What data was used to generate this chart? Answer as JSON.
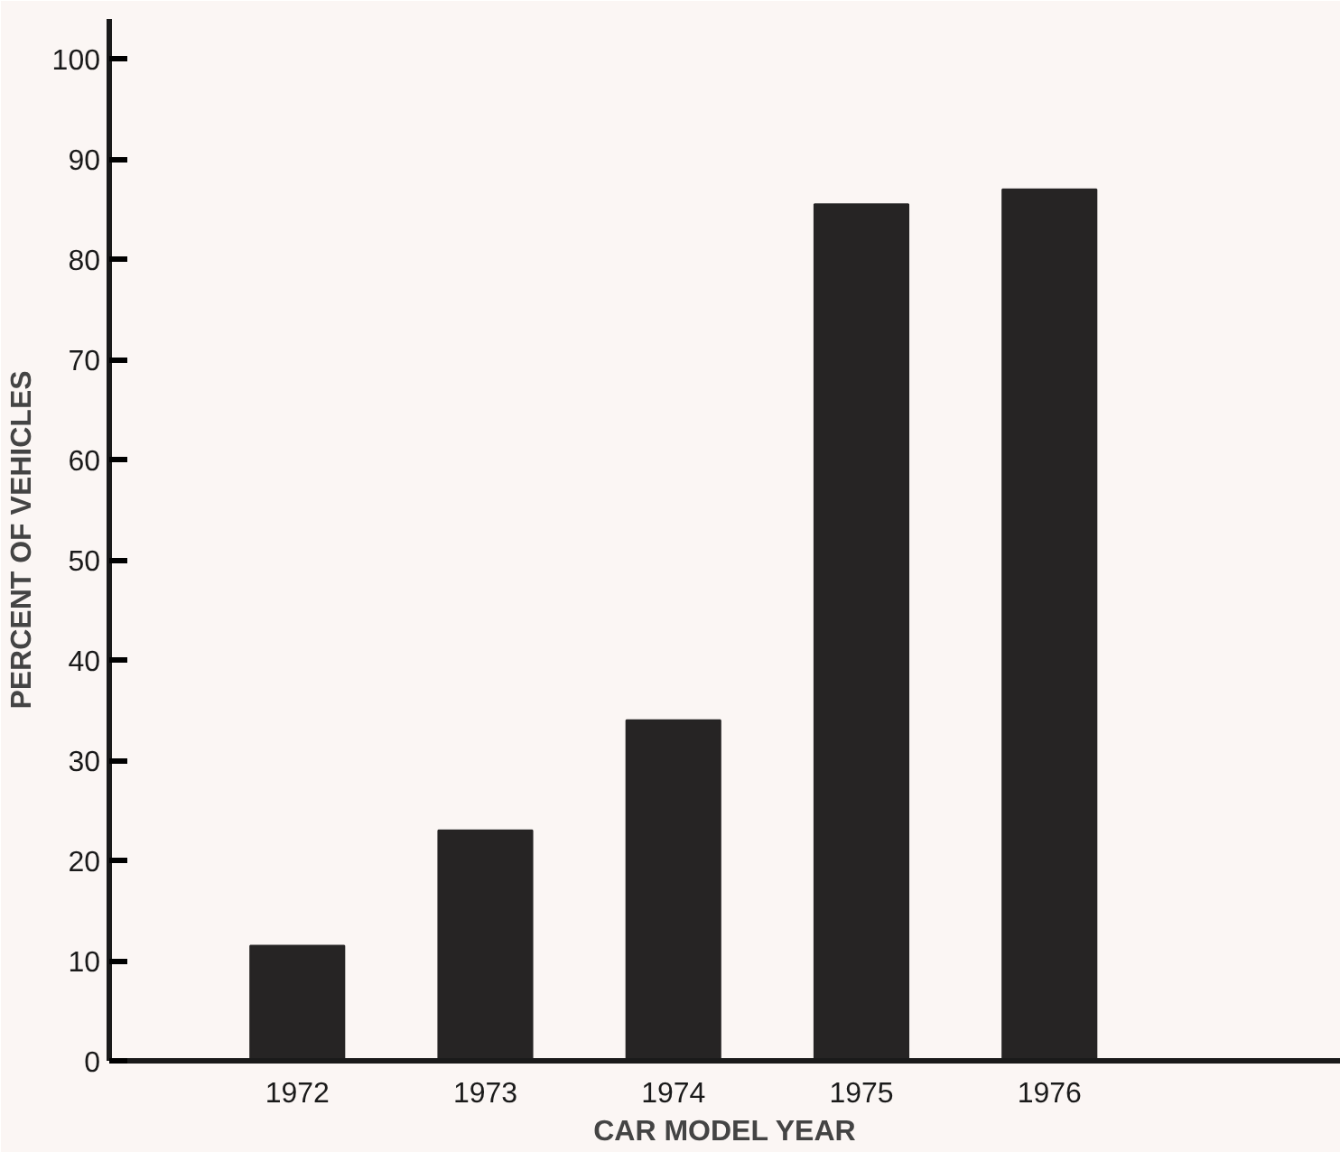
{
  "chart_data": {
    "type": "bar",
    "xlabel": "CAR MODEL YEAR",
    "ylabel": "PERCENT OF VEHICLES",
    "categories": [
      "1972",
      "1973",
      "1974",
      "1975",
      "1976"
    ],
    "values": [
      11.5,
      23,
      34,
      85.5,
      87
    ],
    "color": "#262424",
    "ylim": [
      0,
      104
    ],
    "yticks": [
      0,
      10,
      20,
      30,
      40,
      50,
      60,
      70,
      80,
      90,
      100
    ],
    "grid": false
  }
}
